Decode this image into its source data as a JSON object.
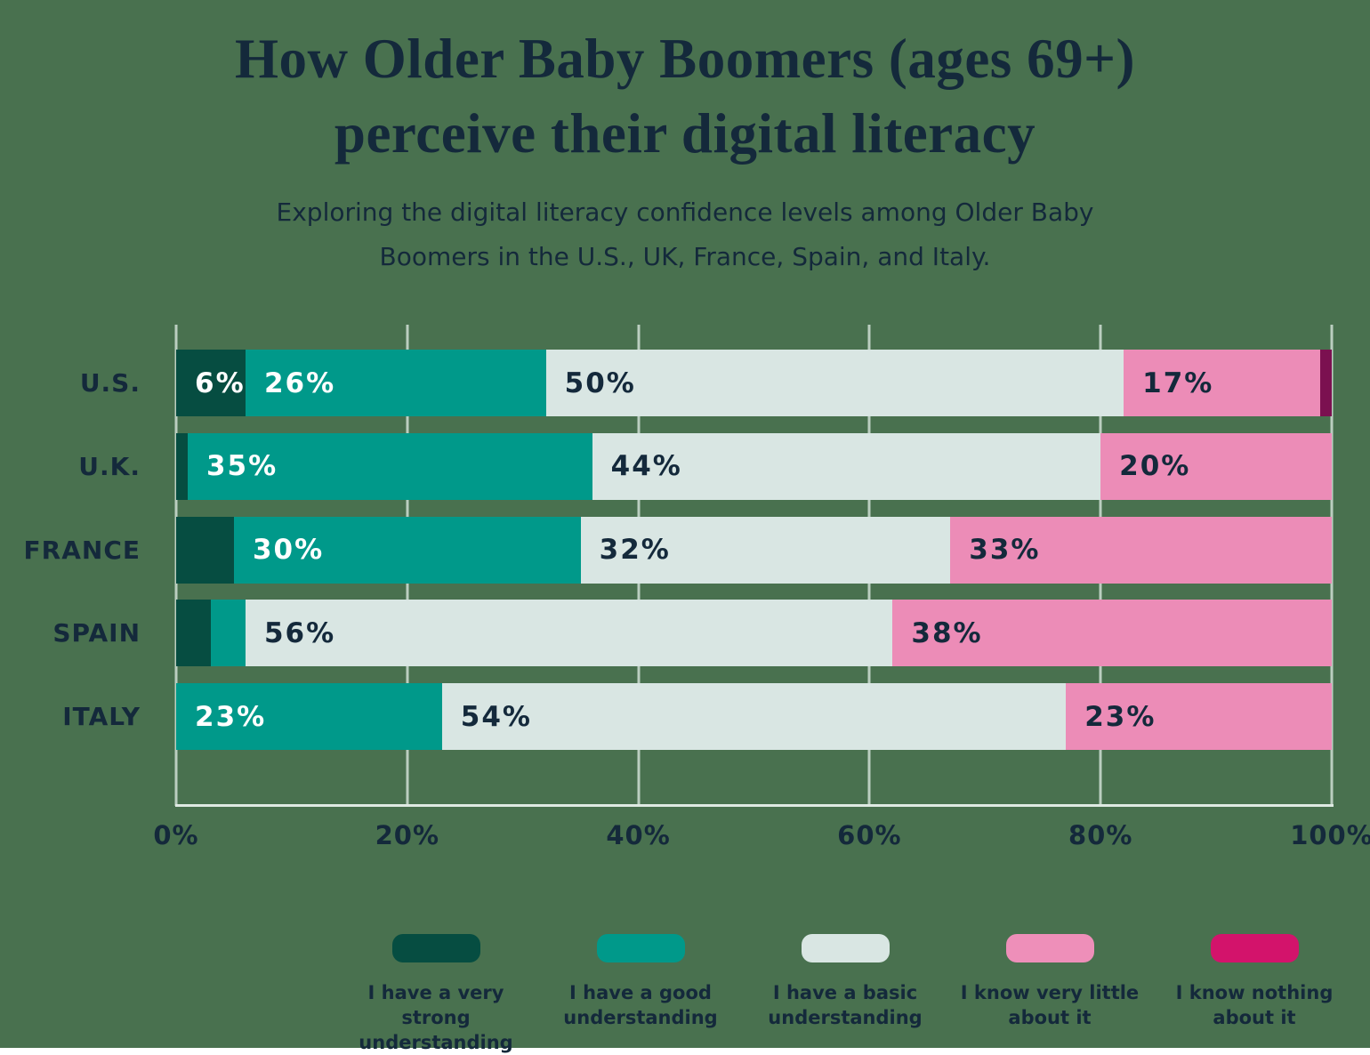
{
  "title": {
    "line1": "How Older Baby Boomers (ages 69+)",
    "line2": "perceive their digital literacy"
  },
  "subtitle": {
    "line1": "Exploring the digital literacy confidence levels among Older Baby",
    "line2": "Boomers in the U.S., UK, France, Spain, and Italy."
  },
  "colors": {
    "background": "#49714f",
    "text_dark": "#14293b",
    "gridline": "#e2ede6",
    "axis_line": "#dfeae3"
  },
  "chart_data": {
    "type": "bar",
    "orientation": "horizontal",
    "stacked": true,
    "title": "How Older Baby Boomers (ages 69+) perceive their digital literacy",
    "xlabel": "",
    "ylabel": "",
    "xlim": [
      0,
      100
    ],
    "grid": true,
    "legend_position": "bottom",
    "categories": [
      "U.S.",
      "U.K.",
      "FRANCE",
      "SPAIN",
      "ITALY"
    ],
    "series": [
      {
        "name": "I have a very strong understanding",
        "legend_lines": [
          "I have a very strong",
          "understanding"
        ],
        "color": "#064d41",
        "legend_color": "#064d41",
        "label_color": "#ffffff",
        "values": [
          6,
          1,
          5,
          3,
          0
        ]
      },
      {
        "name": "I have a good understanding",
        "legend_lines": [
          "I have a good",
          "understanding"
        ],
        "color": "#00998a",
        "legend_color": "#00998a",
        "label_color": "#ffffff",
        "values": [
          26,
          35,
          30,
          3,
          23
        ]
      },
      {
        "name": "I have a basic understanding",
        "legend_lines": [
          "I have a basic",
          "understanding"
        ],
        "color": "#d9e6e3",
        "legend_color": "#d9e6e3",
        "label_color": "#14293b",
        "values": [
          50,
          44,
          32,
          56,
          54
        ]
      },
      {
        "name": "I know very little about it",
        "legend_lines": [
          "I know very little",
          "about it"
        ],
        "color": "#ec8cb7",
        "legend_color": "#ee8fb9",
        "label_color": "#14293b",
        "values": [
          17,
          20,
          33,
          38,
          23
        ]
      },
      {
        "name": "I know nothing about it",
        "legend_lines": [
          "I know nothing",
          "about it"
        ],
        "color": "#7b1050",
        "legend_color": "#d3136b",
        "label_color": "#ffffff",
        "values": [
          1,
          0,
          0,
          0,
          0
        ]
      }
    ],
    "value_label_suffix": "%",
    "min_value_for_label": 6,
    "x_ticks": [
      {
        "label": "0%",
        "value": 0
      },
      {
        "label": "20%",
        "value": 20
      },
      {
        "label": "40%",
        "value": 40
      },
      {
        "label": "60%",
        "value": 60
      },
      {
        "label": "80%",
        "value": 80
      },
      {
        "label": "100%",
        "value": 100
      }
    ]
  }
}
